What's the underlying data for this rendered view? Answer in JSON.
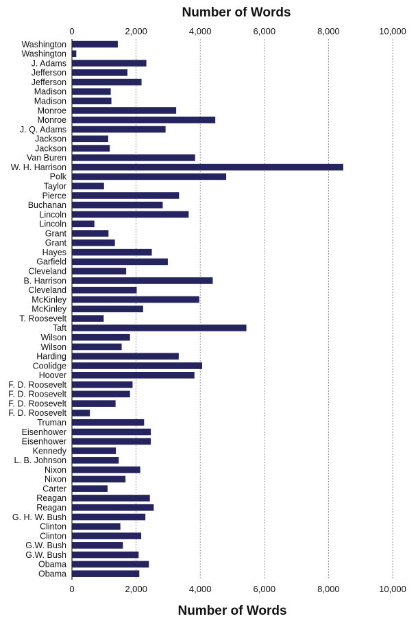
{
  "chart_data": {
    "type": "bar",
    "orientation": "horizontal",
    "title_top": "Number of Words",
    "xlabel": "Number of Words",
    "xlim": [
      0,
      10000
    ],
    "xticks": [
      0,
      2000,
      4000,
      6000,
      8000,
      10000
    ],
    "xtick_labels": [
      "0",
      "2,000",
      "4,000",
      "6,000",
      "8,000",
      "10,000"
    ],
    "grid": true,
    "bar_color": "#26245f",
    "categories": [
      "Washington",
      "Washington",
      "J. Adams",
      "Jefferson",
      "Jefferson",
      "Madison",
      "Madison",
      "Monroe",
      "Monroe",
      "J. Q. Adams",
      "Jackson",
      "Jackson",
      "Van Buren",
      "W. H. Harrison",
      "Polk",
      "Taylor",
      "Pierce",
      "Buchanan",
      "Lincoln",
      "Lincoln",
      "Grant",
      "Grant",
      "Hayes",
      "Garfield",
      "Cleveland",
      "B. Harrison",
      "Cleveland",
      "McKinley",
      "McKinley",
      "T. Roosevelt",
      "Taft",
      "Wilson",
      "Wilson",
      "Harding",
      "Coolidge",
      "Hoover",
      "F. D. Roosevelt",
      "F. D. Roosevelt",
      "F. D. Roosevelt",
      "F. D. Roosevelt",
      "Truman",
      "Eisenhower",
      "Eisenhower",
      "Kennedy",
      "L. B. Johnson",
      "Nixon",
      "Nixon",
      "Carter",
      "Reagan",
      "Reagan",
      "G. H. W. Bush",
      "Clinton",
      "Clinton",
      "G.W. Bush",
      "G.W. Bush",
      "Obama",
      "Obama"
    ],
    "values": [
      1430,
      135,
      2320,
      1730,
      2170,
      1210,
      1230,
      3250,
      4470,
      2920,
      1130,
      1180,
      3840,
      8460,
      4810,
      1000,
      3340,
      2830,
      3640,
      700,
      1140,
      1340,
      2490,
      2990,
      1690,
      4390,
      2020,
      3970,
      2220,
      990,
      5440,
      1810,
      1550,
      3330,
      4060,
      3820,
      1890,
      1810,
      1360,
      560,
      2250,
      2460,
      2460,
      1370,
      1460,
      2130,
      1670,
      1110,
      2430,
      2550,
      2290,
      1510,
      2160,
      1590,
      2080,
      2400,
      2100
    ]
  }
}
